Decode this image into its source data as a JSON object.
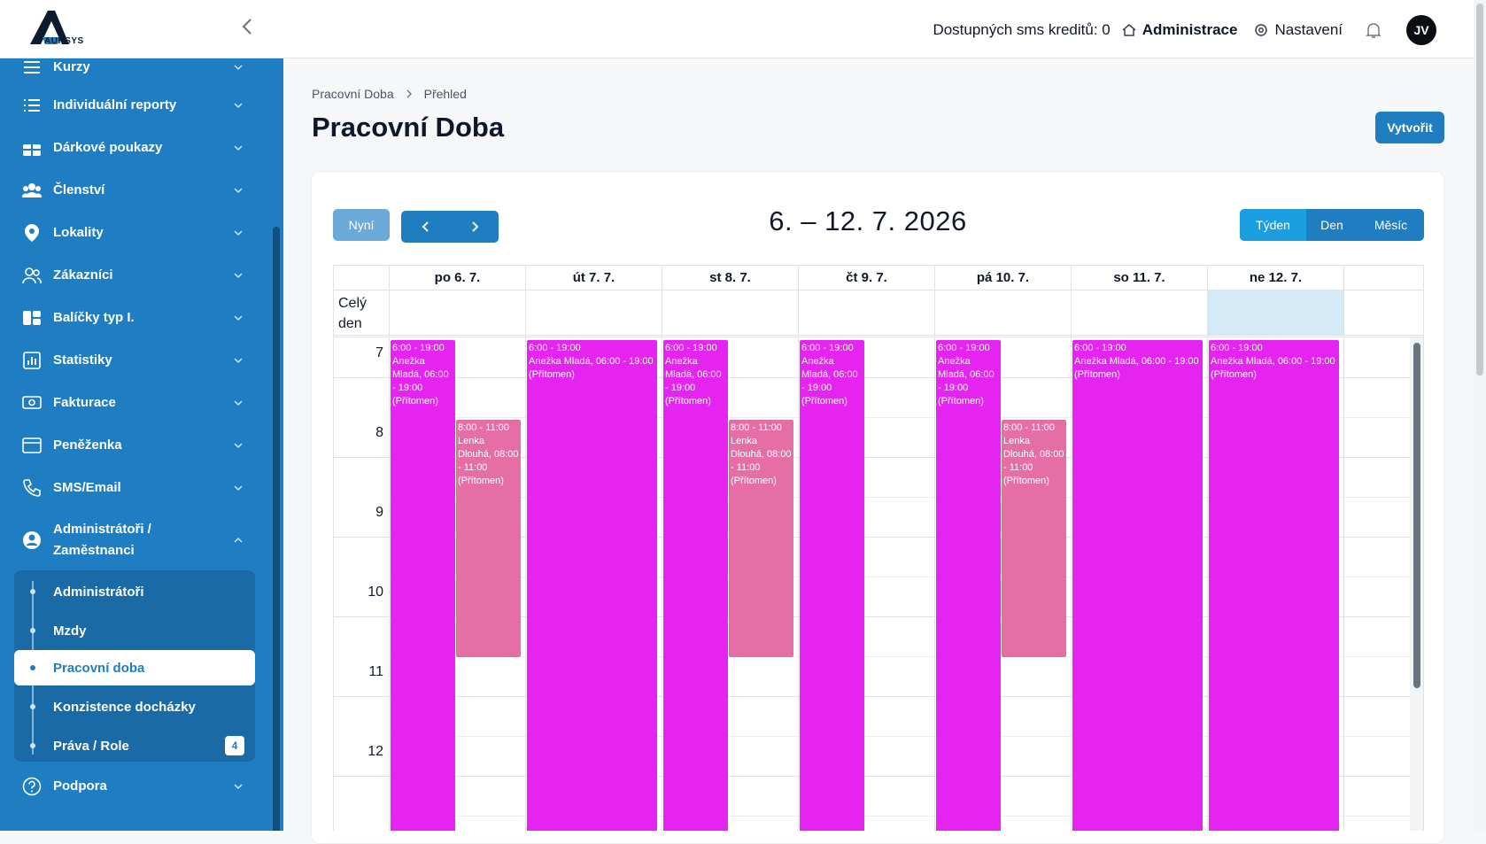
{
  "topbar": {
    "logo_text": "AUKSYS",
    "sms_credits": "Dostupných sms kreditů: 0",
    "administration": "Administrace",
    "settings": "Nastavení",
    "avatar_initials": "JV"
  },
  "sidebar": {
    "items": [
      {
        "label": "Kurzy",
        "icon": "list-icon"
      },
      {
        "label": "Individuální reporty",
        "icon": "list-icon"
      },
      {
        "label": "Dárkové poukazy",
        "icon": "gift-icon"
      },
      {
        "label": "Členství",
        "icon": "users-icon"
      },
      {
        "label": "Lokality",
        "icon": "location-icon"
      },
      {
        "label": "Zákazníci",
        "icon": "customers-icon"
      },
      {
        "label": "Balíčky typ I.",
        "icon": "package-icon"
      },
      {
        "label": "Statistiky",
        "icon": "chart-icon"
      },
      {
        "label": "Fakturace",
        "icon": "invoice-icon"
      },
      {
        "label": "Peněženka",
        "icon": "wallet-icon"
      },
      {
        "label": "SMS/Email",
        "icon": "phone-icon"
      },
      {
        "label": "Administrátoři /",
        "label2": "Zaměstnanci",
        "icon": "account-icon"
      },
      {
        "label": "Podpora",
        "icon": "help-icon"
      }
    ],
    "submenu": [
      {
        "label": "Administrátoři"
      },
      {
        "label": "Mzdy"
      },
      {
        "label": "Pracovní doba"
      },
      {
        "label": "Konzistence docházky"
      },
      {
        "label": "Práva / Role",
        "badge": "4"
      }
    ],
    "accent": "#1f7dc2"
  },
  "main": {
    "breadcrumb": [
      "Pracovní Doba",
      "Přehled"
    ],
    "title": "Pracovní Doba",
    "create_button": "Vytvořit"
  },
  "calendar": {
    "today_button": "Nyní",
    "range": "6. – 12. 7. 2026",
    "views": [
      "Týden",
      "Den",
      "Měsíc"
    ],
    "active_view": "Týden",
    "all_day_label": "Celý den",
    "days": [
      "po 6. 7.",
      "út 7. 7.",
      "st 8. 7.",
      "čt 9. 7.",
      "pá 10. 7.",
      "so 11. 7.",
      "ne 12. 7."
    ],
    "hours": [
      "7",
      "8",
      "9",
      "10",
      "11",
      "12"
    ],
    "events": {
      "anezka_time": "6:00 - 19:00",
      "anezka_text": "Anežka Mladá, 06:00 - 19:00 (Přítomen)",
      "lenka_time": "8:00 - 11:00",
      "lenka_text": "Lenka Dlouhá, 08:00 - 11:00 (Přítomen)"
    },
    "colors": {
      "magenta": "#e524f2",
      "pink": "#e56fa5",
      "today": "#d4eaf7"
    }
  }
}
